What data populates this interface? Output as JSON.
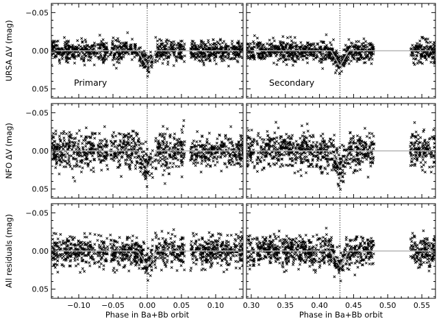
{
  "chart_data": {
    "type": "scatter",
    "columns": [
      {
        "id": "left",
        "xlim": [
          -0.14,
          0.14
        ],
        "xticks": [
          -0.1,
          -0.05,
          0.0,
          0.05,
          0.1
        ],
        "xtick_labels": [
          "−0.10",
          "−0.05",
          "0.00",
          "0.05",
          "0.10"
        ],
        "xlabel": "Phase in Ba+Bb orbit",
        "eclipse_center": 0.0,
        "eclipse_halfwidth": 0.014,
        "model_depth": [
          0.02,
          0.022,
          0.02
        ],
        "gaps": [
          [
            -0.075,
            -0.073
          ],
          [
            -0.057,
            -0.054
          ],
          [
            0.008,
            0.011
          ],
          [
            0.055,
            0.063
          ]
        ]
      },
      {
        "id": "right",
        "xlim": [
          0.293,
          0.57
        ],
        "xticks": [
          0.3,
          0.35,
          0.4,
          0.45,
          0.5,
          0.55
        ],
        "xtick_labels": [
          "0.30",
          "0.35",
          "0.40",
          "0.45",
          "0.50",
          "0.55"
        ],
        "xlabel": "Phase in Ba+Bb orbit",
        "eclipse_center": 0.43,
        "eclipse_halfwidth": 0.013,
        "model_depth": [
          0.02,
          0.022,
          0.02
        ],
        "gaps": [
          [
            0.48,
            0.533
          ],
          [
            0.305,
            0.308
          ]
        ]
      }
    ],
    "rows": [
      {
        "id": "ursa",
        "ylabel": "URSA ΔV (mag)",
        "ylim": [
          0.062,
          -0.062
        ],
        "yticks": [
          -0.05,
          0.0,
          0.05
        ],
        "ytick_labels": [
          "−0.05",
          "0.00",
          "0.05"
        ],
        "scatter_sigma": 0.007,
        "annotations": [
          "Primary",
          "Secondary"
        ]
      },
      {
        "id": "nfo",
        "ylabel": "NFO ΔV (mag)",
        "ylim": [
          0.062,
          -0.062
        ],
        "yticks": [
          -0.05,
          0.0,
          0.05
        ],
        "ytick_labels": [
          "−0.05",
          "0.00",
          "0.05"
        ],
        "scatter_sigma": 0.012,
        "annotations": [
          "",
          ""
        ]
      },
      {
        "id": "all",
        "ylabel": "All residuals (mag)",
        "ylim": [
          0.062,
          -0.062
        ],
        "yticks": [
          -0.05,
          0.0,
          0.05
        ],
        "ytick_labels": [
          "−0.05",
          "0.00",
          "0.05"
        ],
        "scatter_sigma": 0.01,
        "annotations": [
          "",
          ""
        ]
      }
    ],
    "model_line_color": "#b5b5b5",
    "marker": "x",
    "marker_color": "#000000",
    "eclipse_marker_style": "dotted vertical line"
  }
}
